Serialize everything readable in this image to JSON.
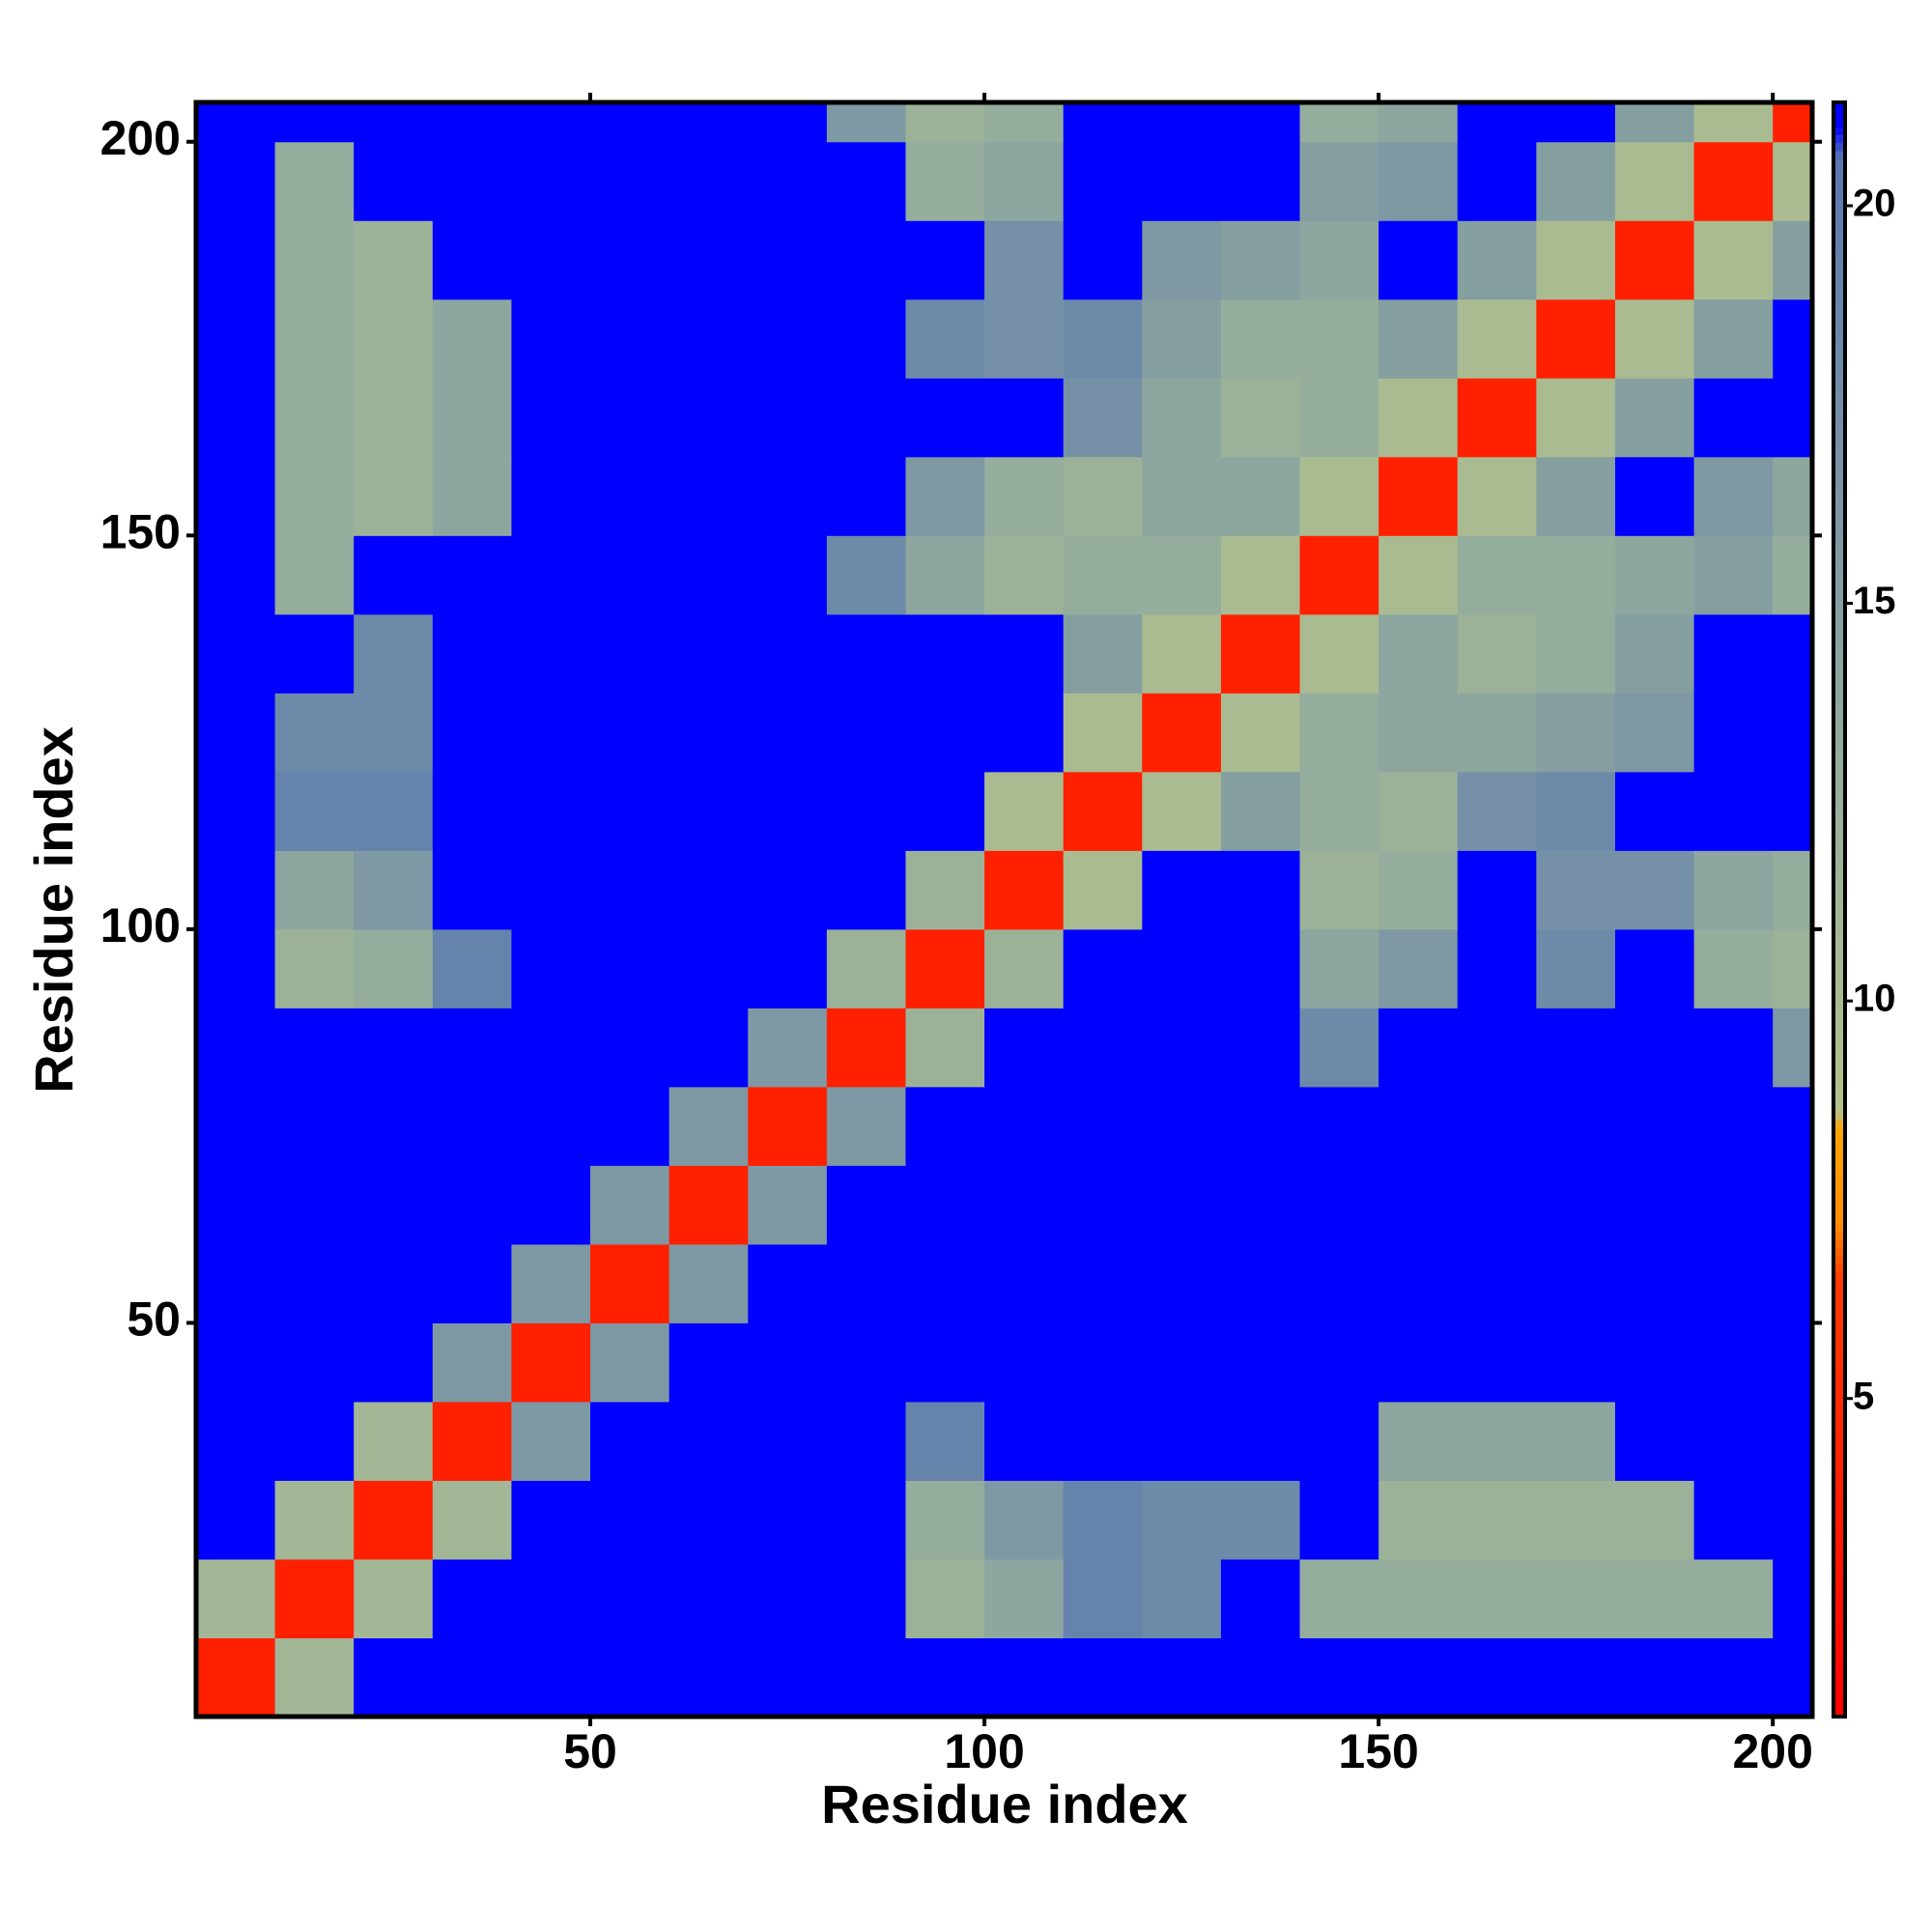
{
  "chart_data": {
    "type": "heatmap",
    "xlabel": "Residue index",
    "ylabel": "Residue index",
    "bins": [
      0,
      10,
      20,
      30,
      40,
      50,
      60,
      70,
      80,
      90,
      100,
      110,
      120,
      130,
      140,
      150,
      160,
      170,
      180,
      190,
      200,
      205
    ],
    "xlim": [
      0,
      205
    ],
    "ylim": [
      0,
      205
    ],
    "xticks": [
      50,
      100,
      150,
      200
    ],
    "yticks": [
      50,
      100,
      150,
      200
    ],
    "clim": [
      1,
      21.3
    ],
    "cticks": [
      5,
      10,
      15,
      20
    ],
    "colorscale": [
      [
        1,
        "#ff0000"
      ],
      [
        6.5,
        "#ff3a00"
      ],
      [
        7.2,
        "#ff8c00"
      ],
      [
        8.4,
        "#ffa500"
      ],
      [
        8.6,
        "#b4c18c"
      ],
      [
        13,
        "#95ad9c"
      ],
      [
        20.6,
        "#5a78b0"
      ],
      [
        21,
        "#0000ff"
      ]
    ],
    "z": [
      [
        4,
        11,
        22,
        22,
        22,
        22,
        22,
        22,
        22,
        22,
        22,
        22,
        22,
        22,
        22,
        22,
        22,
        22,
        22,
        22,
        22
      ],
      [
        11,
        4,
        11,
        22,
        22,
        22,
        22,
        22,
        22,
        12,
        14,
        19,
        18,
        22,
        13,
        13,
        13,
        13,
        13,
        13,
        22
      ],
      [
        22,
        11,
        4,
        11,
        22,
        22,
        22,
        22,
        22,
        13,
        16,
        19,
        18,
        18,
        22,
        12,
        12,
        12,
        12,
        22,
        22
      ],
      [
        22,
        22,
        11,
        4,
        16,
        22,
        22,
        22,
        22,
        19,
        22,
        22,
        22,
        22,
        22,
        14,
        14,
        14,
        22,
        22,
        22
      ],
      [
        22,
        22,
        22,
        16,
        4,
        16,
        22,
        22,
        22,
        22,
        22,
        22,
        22,
        22,
        22,
        22,
        22,
        22,
        22,
        22,
        22
      ],
      [
        22,
        22,
        22,
        22,
        16,
        4,
        16,
        22,
        22,
        22,
        22,
        22,
        22,
        22,
        22,
        22,
        22,
        22,
        22,
        22,
        22
      ],
      [
        22,
        22,
        22,
        22,
        22,
        16,
        4,
        16,
        22,
        22,
        22,
        22,
        22,
        22,
        22,
        22,
        22,
        22,
        22,
        22,
        22
      ],
      [
        22,
        22,
        22,
        22,
        22,
        22,
        16,
        4,
        16,
        22,
        22,
        22,
        22,
        22,
        22,
        22,
        22,
        22,
        22,
        22,
        22
      ],
      [
        22,
        22,
        22,
        22,
        22,
        22,
        22,
        16,
        4,
        12,
        22,
        22,
        22,
        22,
        18,
        22,
        22,
        22,
        22,
        22,
        16
      ],
      [
        22,
        12,
        13,
        19,
        22,
        22,
        22,
        22,
        12,
        4,
        12,
        22,
        22,
        22,
        14,
        16,
        22,
        18,
        22,
        13,
        12
      ],
      [
        22,
        14,
        16,
        22,
        22,
        22,
        22,
        22,
        22,
        12,
        4,
        10,
        22,
        22,
        12,
        13,
        22,
        17,
        17,
        14,
        13
      ],
      [
        22,
        19,
        19,
        22,
        22,
        22,
        22,
        22,
        22,
        22,
        10,
        4,
        10,
        15,
        13,
        12,
        17,
        18,
        22,
        22,
        22
      ],
      [
        22,
        18,
        18,
        22,
        22,
        22,
        22,
        22,
        22,
        22,
        22,
        10,
        4,
        10,
        13,
        14,
        14,
        15,
        16,
        22,
        22
      ],
      [
        22,
        22,
        18,
        22,
        22,
        22,
        22,
        22,
        22,
        22,
        22,
        15,
        10,
        4,
        10,
        14,
        12,
        13,
        15,
        22,
        22
      ],
      [
        22,
        13,
        22,
        22,
        22,
        22,
        22,
        22,
        18,
        14,
        12,
        13,
        13,
        10,
        4,
        10,
        13,
        13,
        14,
        15,
        13
      ],
      [
        22,
        13,
        12,
        14,
        22,
        22,
        22,
        22,
        22,
        16,
        13,
        12,
        14,
        14,
        10,
        4,
        10,
        15,
        22,
        16,
        14
      ],
      [
        22,
        13,
        12,
        14,
        22,
        22,
        22,
        22,
        22,
        22,
        22,
        17,
        14,
        12,
        13,
        10,
        4,
        10,
        15,
        22,
        22
      ],
      [
        22,
        13,
        12,
        14,
        22,
        22,
        22,
        22,
        22,
        18,
        17,
        18,
        15,
        13,
        13,
        15,
        10,
        4,
        10,
        15,
        22
      ],
      [
        22,
        13,
        12,
        22,
        22,
        22,
        22,
        22,
        22,
        22,
        17,
        22,
        16,
        15,
        14,
        22,
        15,
        10,
        4,
        10,
        15
      ],
      [
        22,
        13,
        22,
        22,
        22,
        22,
        22,
        22,
        22,
        13,
        14,
        22,
        22,
        22,
        15,
        16,
        22,
        15,
        10,
        4,
        10
      ],
      [
        22,
        22,
        22,
        22,
        22,
        22,
        22,
        22,
        16,
        12,
        13,
        22,
        22,
        22,
        13,
        14,
        22,
        22,
        15,
        10,
        4
      ]
    ]
  }
}
